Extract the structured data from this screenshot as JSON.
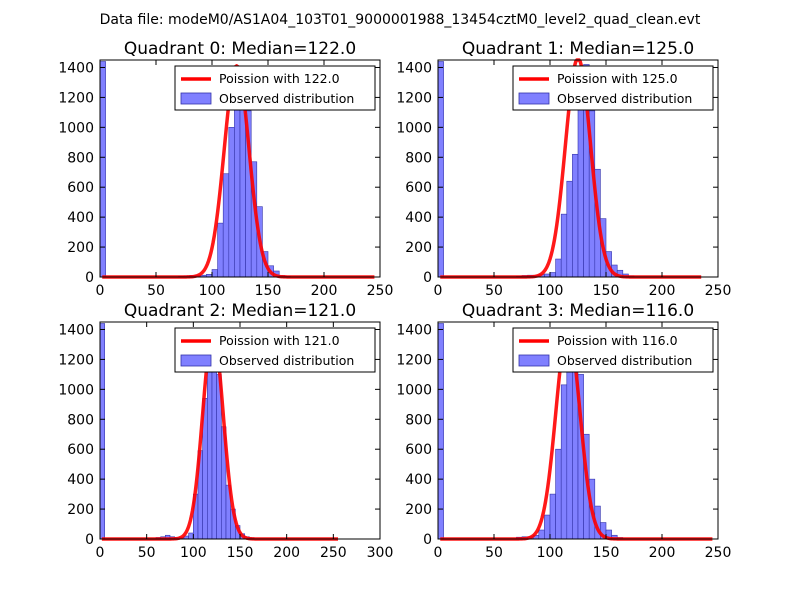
{
  "figure": {
    "suptitle": "Data file: modeM0/AS1A04_103T01_9000001988_13454cztM0_level2_quad_clean.evt"
  },
  "colors": {
    "fit": "#ff0000",
    "bar_fill": "#8080ff",
    "bar_edge": "#3333aa"
  },
  "chart_data": [
    {
      "type": "bar",
      "title": "Quadrant 0: Median=122.0",
      "xlim": [
        0,
        250
      ],
      "ylim": [
        0,
        1450
      ],
      "xticks": [
        0,
        50,
        100,
        150,
        200,
        250
      ],
      "yticks": [
        0,
        200,
        400,
        600,
        800,
        1000,
        1200,
        1400
      ],
      "bin_width": 5,
      "bins": [
        [
          0,
          1440
        ],
        [
          70,
          5
        ],
        [
          75,
          8
        ],
        [
          80,
          10
        ],
        [
          85,
          10
        ],
        [
          90,
          12
        ],
        [
          95,
          18
        ],
        [
          100,
          50
        ],
        [
          105,
          360
        ],
        [
          110,
          690
        ],
        [
          115,
          1000
        ],
        [
          120,
          1370
        ],
        [
          125,
          1360
        ],
        [
          130,
          1110
        ],
        [
          135,
          770
        ],
        [
          140,
          470
        ],
        [
          145,
          170
        ],
        [
          150,
          75
        ],
        [
          155,
          40
        ],
        [
          160,
          10
        ],
        [
          165,
          5
        ]
      ],
      "fit_x": [
        2,
        245
      ],
      "fit_mean": 122,
      "legend": {
        "fit_label": "Poission with 122.0",
        "bar_label": "Observed distribution"
      }
    },
    {
      "type": "bar",
      "title": "Quadrant 1: Median=125.0",
      "xlim": [
        0,
        250
      ],
      "ylim": [
        0,
        1450
      ],
      "xticks": [
        0,
        50,
        100,
        150,
        200,
        250
      ],
      "yticks": [
        0,
        200,
        400,
        600,
        800,
        1000,
        1200,
        1400
      ],
      "bin_width": 5,
      "bins": [
        [
          0,
          1440
        ],
        [
          70,
          5
        ],
        [
          75,
          10
        ],
        [
          80,
          12
        ],
        [
          85,
          10
        ],
        [
          90,
          15
        ],
        [
          95,
          20
        ],
        [
          100,
          30
        ],
        [
          105,
          120
        ],
        [
          110,
          420
        ],
        [
          115,
          640
        ],
        [
          120,
          820
        ],
        [
          125,
          1320
        ],
        [
          130,
          1420
        ],
        [
          135,
          1110
        ],
        [
          140,
          720
        ],
        [
          145,
          390
        ],
        [
          150,
          170
        ],
        [
          155,
          80
        ],
        [
          160,
          45
        ],
        [
          165,
          20
        ],
        [
          170,
          8
        ]
      ],
      "fit_x": [
        2,
        235
      ],
      "fit_mean": 125,
      "legend": {
        "fit_label": "Poission with 125.0",
        "bar_label": "Observed distribution"
      }
    },
    {
      "type": "bar",
      "title": "Quadrant 2: Median=121.0",
      "xlim": [
        0,
        300
      ],
      "ylim": [
        0,
        1450
      ],
      "xticks": [
        0,
        50,
        100,
        150,
        200,
        250,
        300
      ],
      "yticks": [
        0,
        200,
        400,
        600,
        800,
        1000,
        1200,
        1400
      ],
      "bin_width": 5,
      "bins": [
        [
          0,
          1440
        ],
        [
          60,
          10
        ],
        [
          65,
          15
        ],
        [
          70,
          25
        ],
        [
          75,
          15
        ],
        [
          80,
          10
        ],
        [
          85,
          10
        ],
        [
          90,
          20
        ],
        [
          95,
          40
        ],
        [
          100,
          300
        ],
        [
          105,
          590
        ],
        [
          110,
          940
        ],
        [
          115,
          1220
        ],
        [
          120,
          1340
        ],
        [
          125,
          1100
        ],
        [
          130,
          750
        ],
        [
          135,
          360
        ],
        [
          140,
          200
        ],
        [
          145,
          90
        ],
        [
          150,
          35
        ],
        [
          155,
          15
        ],
        [
          160,
          8
        ]
      ],
      "fit_x": [
        2,
        255
      ],
      "fit_mean": 121,
      "legend": {
        "fit_label": "Poission with 121.0",
        "bar_label": "Observed distribution"
      }
    },
    {
      "type": "bar",
      "title": "Quadrant 3: Median=116.0",
      "xlim": [
        0,
        250
      ],
      "ylim": [
        0,
        1450
      ],
      "xticks": [
        0,
        50,
        100,
        150,
        200,
        250
      ],
      "yticks": [
        0,
        200,
        400,
        600,
        800,
        1000,
        1200,
        1400
      ],
      "bin_width": 5,
      "bins": [
        [
          0,
          1440
        ],
        [
          70,
          12
        ],
        [
          75,
          15
        ],
        [
          80,
          15
        ],
        [
          85,
          25
        ],
        [
          90,
          60
        ],
        [
          95,
          160
        ],
        [
          100,
          300
        ],
        [
          105,
          600
        ],
        [
          110,
          1030
        ],
        [
          115,
          1330
        ],
        [
          120,
          1360
        ],
        [
          125,
          1100
        ],
        [
          130,
          700
        ],
        [
          135,
          400
        ],
        [
          140,
          220
        ],
        [
          145,
          110
        ],
        [
          150,
          60
        ],
        [
          155,
          25
        ],
        [
          160,
          10
        ]
      ],
      "fit_x": [
        2,
        245
      ],
      "fit_mean": 116,
      "legend": {
        "fit_label": "Poission with 116.0",
        "bar_label": "Observed distribution"
      }
    }
  ]
}
